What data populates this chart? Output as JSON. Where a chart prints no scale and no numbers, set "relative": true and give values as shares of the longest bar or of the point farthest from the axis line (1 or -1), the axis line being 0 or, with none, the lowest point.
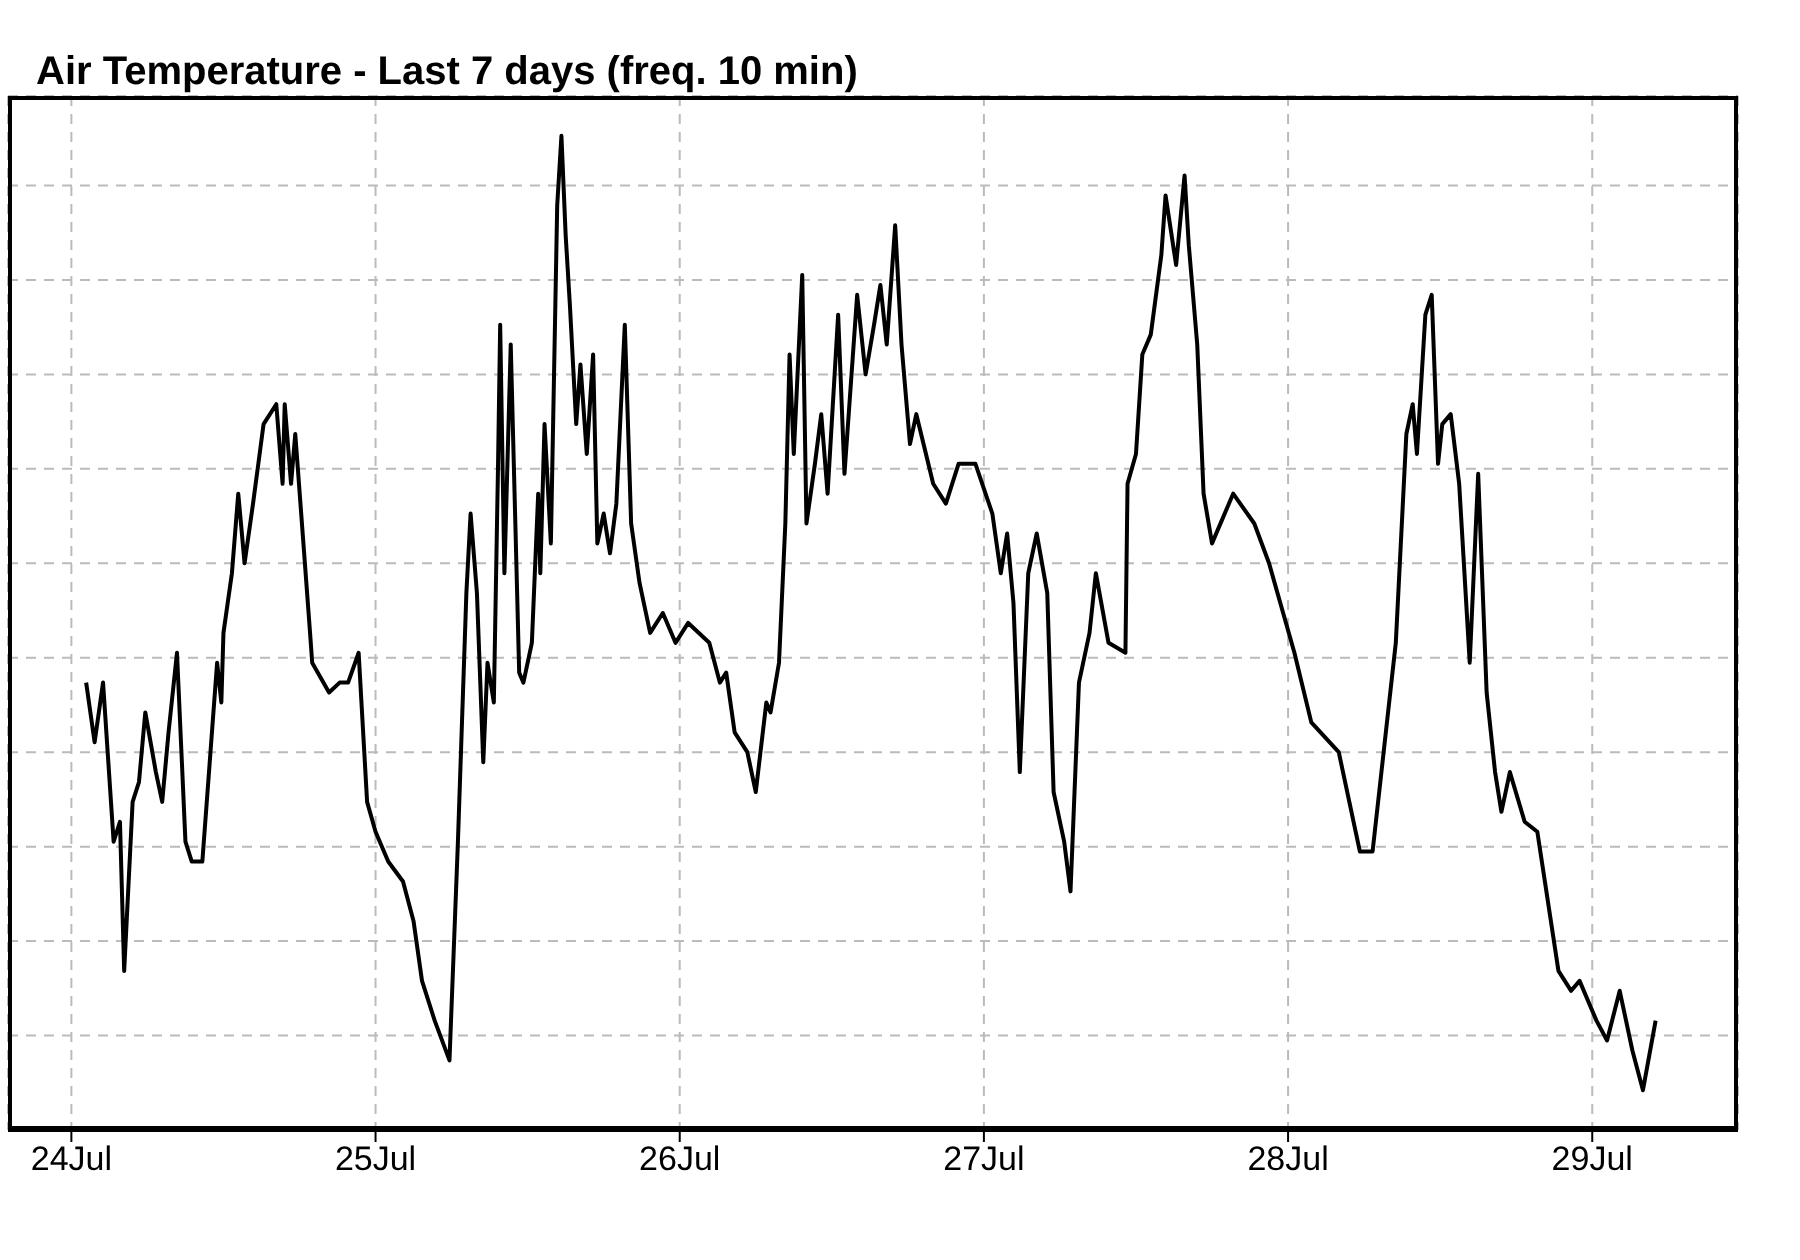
{
  "chart_data": {
    "type": "line",
    "title": "Air Temperature - Last 7 days (freq. 10 min)",
    "relative": true,
    "grid": true,
    "marker": "none",
    "line_style": "solid",
    "color": "#000000",
    "xlim": [
      "--07-23T19:00",
      "--07-29T11:30"
    ],
    "xticks": [
      {
        "value": "--07-24",
        "label": "24Jul"
      },
      {
        "value": "--07-25",
        "label": "25Jul"
      },
      {
        "value": "--07-26",
        "label": "26Jul"
      },
      {
        "value": "--07-27",
        "label": "27Jul"
      },
      {
        "value": "--07-28",
        "label": "28Jul"
      },
      {
        "value": "--07-29",
        "label": "29Jul"
      }
    ],
    "x": [
      "--07-24T01:10",
      "--07-24T01:50",
      "--07-24T02:30",
      "--07-24T03:20",
      "--07-24T03:50",
      "--07-24T04:10",
      "--07-24T04:50",
      "--07-24T05:20",
      "--07-24T05:50",
      "--07-24T06:40",
      "--07-24T07:10",
      "--07-24T07:40",
      "--07-24T08:20",
      "--07-24T09:00",
      "--07-24T09:30",
      "--07-24T10:20",
      "--07-24T11:30",
      "--07-24T11:50",
      "--07-24T12:00",
      "--07-24T12:40",
      "--07-24T13:10",
      "--07-24T13:40",
      "--07-24T14:20",
      "--07-24T15:10",
      "--07-24T16:10",
      "--07-24T16:40",
      "--07-24T16:50",
      "--07-24T17:20",
      "--07-24T17:40",
      "--07-24T18:50",
      "--07-24T19:00",
      "--07-24T20:20",
      "--07-24T21:10",
      "--07-24T21:50",
      "--07-24T22:40",
      "--07-24T23:20",
      "--07-25T00:00",
      "--07-25T01:00",
      "--07-25T02:10",
      "--07-25T03:00",
      "--07-25T03:40",
      "--07-25T04:40",
      "--07-25T05:50",
      "--07-25T06:30",
      "--07-25T07:10",
      "--07-25T07:30",
      "--07-25T08:00",
      "--07-25T08:30",
      "--07-25T08:50",
      "--07-25T09:20",
      "--07-25T09:40",
      "--07-25T09:50",
      "--07-25T10:10",
      "--07-25T10:40",
      "--07-25T11:20",
      "--07-25T11:40",
      "--07-25T12:20",
      "--07-25T12:50",
      "--07-25T13:00",
      "--07-25T13:20",
      "--07-25T13:50",
      "--07-25T14:20",
      "--07-25T14:40",
      "--07-25T15:00",
      "--07-25T15:20",
      "--07-25T15:50",
      "--07-25T16:10",
      "--07-25T16:40",
      "--07-25T17:10",
      "--07-25T17:30",
      "--07-25T18:00",
      "--07-25T18:30",
      "--07-25T19:00",
      "--07-25T19:40",
      "--07-25T20:10",
      "--07-25T20:50",
      "--07-25T21:40",
      "--07-25T22:40",
      "--07-25T23:40",
      "--07-26T00:40",
      "--07-26T02:20",
      "--07-26T03:10",
      "--07-26T03:40",
      "--07-26T04:20",
      "--07-26T05:20",
      "--07-26T06:00",
      "--07-26T06:50",
      "--07-26T07:10",
      "--07-26T07:50",
      "--07-26T08:20",
      "--07-26T08:40",
      "--07-26T09:00",
      "--07-26T09:40",
      "--07-26T10:00",
      "--07-26T10:40",
      "--07-26T11:10",
      "--07-26T11:40",
      "--07-26T12:30",
      "--07-26T13:00",
      "--07-26T14:00",
      "--07-26T14:40",
      "--07-26T15:20",
      "--07-26T15:50",
      "--07-26T16:20",
      "--07-26T17:00",
      "--07-26T17:30",
      "--07-26T18:10",
      "--07-26T18:40",
      "--07-26T20:00",
      "--07-26T21:00",
      "--07-26T22:00",
      "--07-26T23:20",
      "--07-27T00:40",
      "--07-27T01:20",
      "--07-27T01:50",
      "--07-27T02:20",
      "--07-27T02:50",
      "--07-27T03:30",
      "--07-27T04:10",
      "--07-27T05:00",
      "--07-27T05:30",
      "--07-27T06:20",
      "--07-27T06:50",
      "--07-27T07:30",
      "--07-27T08:20",
      "--07-27T08:50",
      "--07-27T09:50",
      "--07-27T11:10",
      "--07-27T11:20",
      "--07-27T12:00",
      "--07-27T12:30",
      "--07-27T13:10",
      "--07-27T14:00",
      "--07-27T14:20",
      "--07-27T15:10",
      "--07-27T15:50",
      "--07-27T16:10",
      "--07-27T16:50",
      "--07-27T17:20",
      "--07-27T18:00",
      "--07-27T19:40",
      "--07-27T21:20",
      "--07-27T22:30",
      "--07-28T00:30",
      "--07-28T01:50",
      "--07-28T04:00",
      "--07-28T05:40",
      "--07-28T06:40",
      "--07-28T08:30",
      "--07-28T09:20",
      "--07-28T09:50",
      "--07-28T10:10",
      "--07-28T10:50",
      "--07-28T11:20",
      "--07-28T11:50",
      "--07-28T12:10",
      "--07-28T12:50",
      "--07-28T13:30",
      "--07-28T14:20",
      "--07-28T15:00",
      "--07-28T15:40",
      "--07-28T16:20",
      "--07-28T16:50",
      "--07-28T17:30",
      "--07-28T18:40",
      "--07-28T19:40",
      "--07-28T21:20",
      "--07-28T22:20",
      "--07-28T23:00",
      "--07-29T00:20",
      "--07-29T01:10",
      "--07-29T02:10",
      "--07-29T03:10",
      "--07-29T04:00",
      "--07-29T05:00"
    ],
    "values": [
      0.45,
      0.39,
      0.45,
      0.29,
      0.31,
      0.16,
      0.33,
      0.35,
      0.42,
      0.36,
      0.33,
      0.4,
      0.48,
      0.29,
      0.27,
      0.27,
      0.47,
      0.43,
      0.5,
      0.56,
      0.64,
      0.57,
      0.63,
      0.71,
      0.73,
      0.65,
      0.73,
      0.65,
      0.7,
      0.5,
      0.47,
      0.44,
      0.45,
      0.45,
      0.48,
      0.33,
      0.3,
      0.27,
      0.25,
      0.21,
      0.15,
      0.11,
      0.07,
      0.29,
      0.54,
      0.62,
      0.54,
      0.37,
      0.47,
      0.43,
      0.67,
      0.81,
      0.56,
      0.79,
      0.46,
      0.45,
      0.49,
      0.64,
      0.56,
      0.71,
      0.59,
      0.93,
      1,
      0.9,
      0.83,
      0.71,
      0.77,
      0.68,
      0.78,
      0.59,
      0.62,
      0.58,
      0.63,
      0.81,
      0.61,
      0.55,
      0.5,
      0.52,
      0.49,
      0.51,
      0.49,
      0.45,
      0.46,
      0.4,
      0.38,
      0.34,
      0.43,
      0.42,
      0.47,
      0.61,
      0.78,
      0.68,
      0.86,
      0.61,
      0.67,
      0.72,
      0.64,
      0.82,
      0.66,
      0.84,
      0.76,
      0.81,
      0.85,
      0.79,
      0.91,
      0.79,
      0.69,
      0.72,
      0.65,
      0.63,
      0.67,
      0.67,
      0.62,
      0.56,
      0.6,
      0.53,
      0.36,
      0.56,
      0.6,
      0.54,
      0.34,
      0.29,
      0.24,
      0.45,
      0.5,
      0.56,
      0.49,
      0.48,
      0.65,
      0.68,
      0.78,
      0.8,
      0.88,
      0.94,
      0.87,
      0.96,
      0.89,
      0.79,
      0.64,
      0.59,
      0.64,
      0.61,
      0.57,
      0.48,
      0.41,
      0.38,
      0.28,
      0.28,
      0.49,
      0.7,
      0.73,
      0.68,
      0.82,
      0.84,
      0.67,
      0.71,
      0.72,
      0.65,
      0.47,
      0.66,
      0.44,
      0.36,
      0.32,
      0.36,
      0.31,
      0.3,
      0.16,
      0.14,
      0.15,
      0.11,
      0.09,
      0.14,
      0.08,
      0.04,
      0.11
    ]
  }
}
